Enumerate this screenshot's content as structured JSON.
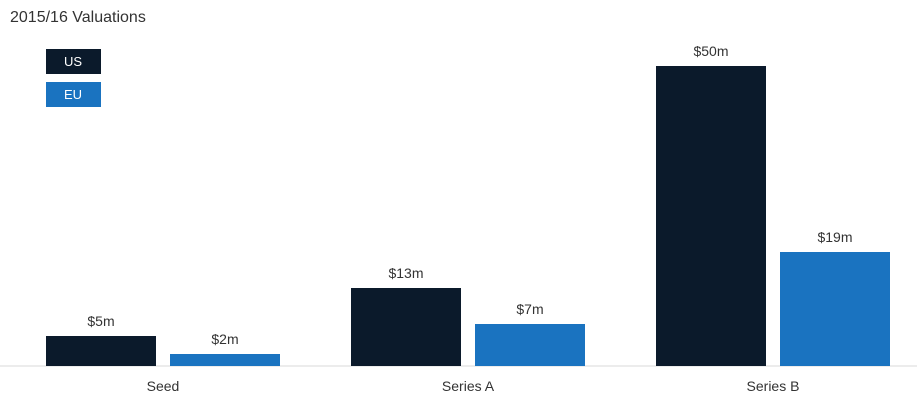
{
  "chart_data": {
    "type": "bar",
    "title": "2015/16 Valuations",
    "categories": [
      "Seed",
      "Series A",
      "Series B"
    ],
    "series": [
      {
        "name": "US",
        "color": "#0b1a2b",
        "values": [
          5,
          13,
          50
        ],
        "labels": [
          "$5m",
          "$13m",
          "$50m"
        ]
      },
      {
        "name": "EU",
        "color": "#1a73c0",
        "values": [
          2,
          7,
          19
        ],
        "labels": [
          "$2m",
          "$7m",
          "$19m"
        ]
      }
    ],
    "unit": "$m",
    "ylim": [
      0,
      50
    ],
    "grid": false,
    "legend_position": "top-left"
  }
}
